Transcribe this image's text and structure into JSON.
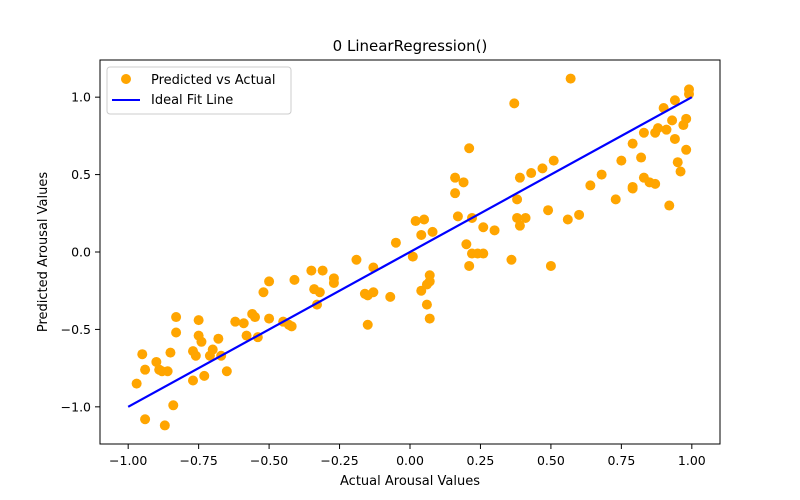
{
  "chart_data": {
    "type": "scatter",
    "title": "0 LinearRegression()",
    "xlabel": "Actual Arousal Values",
    "ylabel": "Predicted Arousal Values",
    "xlim": [
      -1.1,
      1.1
    ],
    "ylim": [
      -1.24,
      1.24
    ],
    "xticks": [
      -1.0,
      -0.75,
      -0.5,
      -0.25,
      0.0,
      0.25,
      0.5,
      0.75,
      1.0
    ],
    "xtick_labels": [
      "−1.00",
      "−0.75",
      "−0.50",
      "−0.25",
      "0.00",
      "0.25",
      "0.50",
      "0.75",
      "1.00"
    ],
    "yticks": [
      -1.0,
      -0.5,
      0.0,
      0.5,
      1.0
    ],
    "ytick_labels": [
      "−1.0",
      "−0.5",
      "0.0",
      "0.5",
      "1.0"
    ],
    "grid": false,
    "legend_position": "top-left",
    "series": [
      {
        "name": "Predicted vs Actual",
        "kind": "scatter",
        "color": "#FFA500",
        "points": [
          [
            -0.97,
            -0.85
          ],
          [
            -0.95,
            -0.66
          ],
          [
            -0.94,
            -0.76
          ],
          [
            -0.94,
            -1.08
          ],
          [
            -0.9,
            -0.71
          ],
          [
            -0.89,
            -0.76
          ],
          [
            -0.88,
            -0.77
          ],
          [
            -0.87,
            -1.12
          ],
          [
            -0.86,
            -0.77
          ],
          [
            -0.85,
            -0.65
          ],
          [
            -0.84,
            -0.99
          ],
          [
            -0.83,
            -0.52
          ],
          [
            -0.83,
            -0.42
          ],
          [
            -0.77,
            -0.64
          ],
          [
            -0.77,
            -0.83
          ],
          [
            -0.76,
            -0.67
          ],
          [
            -0.75,
            -0.54
          ],
          [
            -0.75,
            -0.44
          ],
          [
            -0.74,
            -0.58
          ],
          [
            -0.73,
            -0.8
          ],
          [
            -0.71,
            -0.67
          ],
          [
            -0.7,
            -0.63
          ],
          [
            -0.68,
            -0.56
          ],
          [
            -0.67,
            -0.67
          ],
          [
            -0.65,
            -0.77
          ],
          [
            -0.62,
            -0.45
          ],
          [
            -0.59,
            -0.46
          ],
          [
            -0.58,
            -0.54
          ],
          [
            -0.56,
            -0.4
          ],
          [
            -0.55,
            -0.42
          ],
          [
            -0.54,
            -0.55
          ],
          [
            -0.52,
            -0.26
          ],
          [
            -0.5,
            -0.43
          ],
          [
            -0.5,
            -0.19
          ],
          [
            -0.45,
            -0.45
          ],
          [
            -0.43,
            -0.47
          ],
          [
            -0.42,
            -0.48
          ],
          [
            -0.41,
            -0.18
          ],
          [
            -0.35,
            -0.12
          ],
          [
            -0.34,
            -0.24
          ],
          [
            -0.33,
            -0.34
          ],
          [
            -0.32,
            -0.26
          ],
          [
            -0.31,
            -0.12
          ],
          [
            -0.27,
            -0.17
          ],
          [
            -0.27,
            -0.2
          ],
          [
            -0.19,
            -0.05
          ],
          [
            -0.16,
            -0.27
          ],
          [
            -0.15,
            -0.47
          ],
          [
            -0.15,
            -0.28
          ],
          [
            -0.13,
            -0.26
          ],
          [
            -0.13,
            -0.1
          ],
          [
            -0.07,
            -0.29
          ],
          [
            -0.05,
            0.06
          ],
          [
            0.01,
            -0.03
          ],
          [
            0.02,
            0.2
          ],
          [
            0.04,
            -0.25
          ],
          [
            0.04,
            0.11
          ],
          [
            0.05,
            0.21
          ],
          [
            0.06,
            -0.34
          ],
          [
            0.06,
            -0.21
          ],
          [
            0.07,
            -0.15
          ],
          [
            0.07,
            -0.19
          ],
          [
            0.07,
            -0.43
          ],
          [
            0.08,
            0.13
          ],
          [
            0.16,
            0.38
          ],
          [
            0.16,
            0.48
          ],
          [
            0.17,
            0.23
          ],
          [
            0.19,
            0.45
          ],
          [
            0.2,
            0.05
          ],
          [
            0.21,
            0.67
          ],
          [
            0.21,
            -0.09
          ],
          [
            0.22,
            -0.01
          ],
          [
            0.22,
            0.22
          ],
          [
            0.24,
            -0.01
          ],
          [
            0.26,
            -0.01
          ],
          [
            0.26,
            0.16
          ],
          [
            0.3,
            0.14
          ],
          [
            0.36,
            -0.05
          ],
          [
            0.37,
            0.96
          ],
          [
            0.38,
            0.34
          ],
          [
            0.38,
            0.22
          ],
          [
            0.39,
            0.17
          ],
          [
            0.39,
            0.48
          ],
          [
            0.41,
            0.22
          ],
          [
            0.43,
            0.51
          ],
          [
            0.47,
            0.54
          ],
          [
            0.49,
            0.27
          ],
          [
            0.5,
            -0.09
          ],
          [
            0.51,
            0.59
          ],
          [
            0.56,
            0.21
          ],
          [
            0.57,
            1.12
          ],
          [
            0.6,
            0.24
          ],
          [
            0.64,
            0.43
          ],
          [
            0.68,
            0.5
          ],
          [
            0.73,
            0.34
          ],
          [
            0.75,
            0.59
          ],
          [
            0.79,
            0.42
          ],
          [
            0.79,
            0.41
          ],
          [
            0.79,
            0.7
          ],
          [
            0.82,
            0.61
          ],
          [
            0.83,
            0.77
          ],
          [
            0.83,
            0.48
          ],
          [
            0.85,
            0.45
          ],
          [
            0.87,
            0.44
          ],
          [
            0.87,
            0.77
          ],
          [
            0.88,
            0.8
          ],
          [
            0.9,
            0.93
          ],
          [
            0.91,
            0.79
          ],
          [
            0.92,
            0.3
          ],
          [
            0.93,
            0.85
          ],
          [
            0.94,
            0.73
          ],
          [
            0.94,
            0.98
          ],
          [
            0.95,
            0.58
          ],
          [
            0.96,
            0.52
          ],
          [
            0.97,
            0.82
          ],
          [
            0.98,
            0.86
          ],
          [
            0.98,
            0.66
          ],
          [
            0.99,
            1.05
          ],
          [
            0.99,
            1.02
          ]
        ]
      },
      {
        "name": "Ideal Fit Line",
        "kind": "line",
        "color": "#0000FF",
        "points": [
          [
            -1.0,
            -1.0
          ],
          [
            1.0,
            1.0
          ]
        ]
      }
    ]
  }
}
